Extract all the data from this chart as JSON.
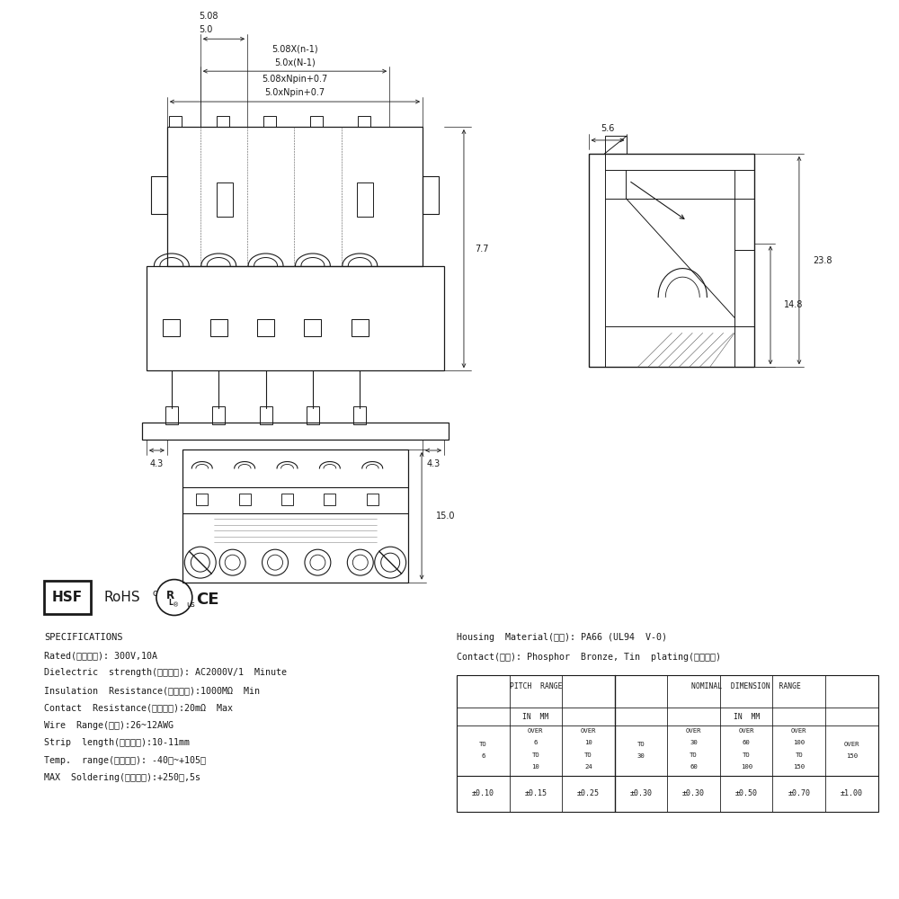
{
  "bg_color": "#ffffff",
  "line_color": "#1a1a1a",
  "spec_lines": [
    "SPECIFICATIONS",
    "Rated(额定参数): 300V,10A",
    "Dielectric  strength(抗电强度): AC2000V/1  Minute",
    "Insulation  Resistance(绵缘电阵):1000MΩ  Min",
    "Contact  Resistance(接触电阵):20mΩ  Max",
    "Wire  Range(线径):26~12AWG",
    "Strip  length(剥线长度):10-11mm",
    "Temp.  range(操作温度): -40℃~+105℃",
    "MAX  Soldering(瞬时温度):+250℃,5s"
  ],
  "housing_line1": "Housing  Material(塑件): PA66 (UL94  V-0)",
  "housing_line2": "Contact(端子): Phosphor  Bronze, Tin  plating(磷铜镇銀)",
  "table_values": [
    "±0.10",
    "±0.15",
    "±0.25",
    "±0.30",
    "±0.30",
    "±0.50",
    "±0.70",
    "±1.00"
  ],
  "dim_top1a": "5.0xNpin+0.7",
  "dim_top1b": "5.08xNpin+0.7",
  "dim_top2a": "5.0x(N-1)",
  "dim_top2b": "5.08X(n-1)",
  "dim_top3a": "5.0",
  "dim_top3b": "5.08",
  "dim_77": "7.7",
  "dim_43l": "4.3",
  "dim_43r": "4.3",
  "dim_56": "5.6",
  "dim_148": "14.8",
  "dim_238": "23.8",
  "dim_150": "15.0"
}
